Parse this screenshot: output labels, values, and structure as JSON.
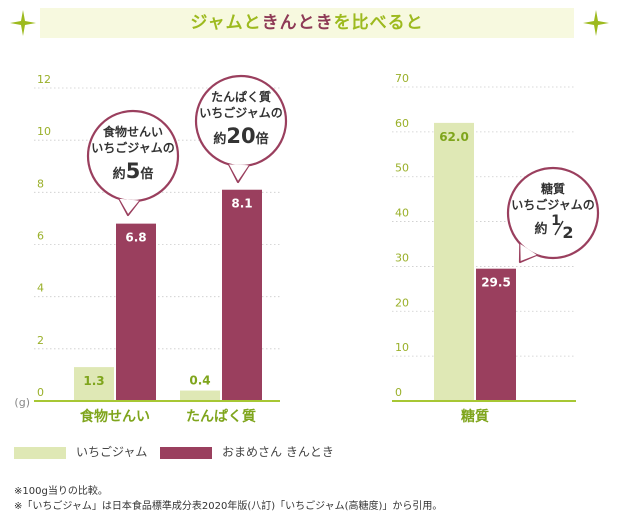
{
  "title": {
    "part1": "ジャムと",
    "part2": "きんとき",
    "part3": "を比べると"
  },
  "colors": {
    "strawberry": "#dfe8b5",
    "kintoki": "#9a3f5e",
    "title_green": "#9dba1e",
    "title_red": "#8e3a56",
    "axis": "#a7c734",
    "tick": "#9ab02a",
    "value_green": "#7fa51c"
  },
  "chart_data": [
    {
      "type": "bar",
      "categories": [
        "食物せんい",
        "たんぱく質"
      ],
      "series": [
        {
          "name": "いちごジャム",
          "values": [
            1.3,
            0.4
          ]
        },
        {
          "name": "おまめさん きんとき",
          "values": [
            6.8,
            8.1
          ]
        }
      ],
      "ylim": [
        0,
        12
      ],
      "yticks": [
        0,
        2,
        4,
        6,
        8,
        10,
        12
      ],
      "yunit": "(g)",
      "value_labels": [
        "1.3",
        "6.8",
        "0.4",
        "8.1"
      ],
      "callouts": [
        {
          "lines": [
            "食物せんい",
            "いちごジャムの"
          ],
          "prefix": "約",
          "big": "5",
          "suffix": "倍"
        },
        {
          "lines": [
            "たんぱく質",
            "いちごジャムの"
          ],
          "prefix": "約",
          "big": "20",
          "suffix": "倍"
        }
      ]
    },
    {
      "type": "bar",
      "categories": [
        "糖質"
      ],
      "series": [
        {
          "name": "いちごジャム",
          "values": [
            62.0
          ]
        },
        {
          "name": "おまめさん きんとき",
          "values": [
            29.5
          ]
        }
      ],
      "ylim": [
        0,
        70
      ],
      "yticks": [
        0,
        10,
        20,
        30,
        40,
        50,
        60,
        70
      ],
      "value_labels": [
        "62.0",
        "29.5"
      ],
      "callouts": [
        {
          "lines": [
            "糖質",
            "いちごジャムの"
          ],
          "prefix": "約",
          "num": "1",
          "den": "2"
        }
      ]
    }
  ],
  "legend": [
    {
      "label": "いちごジャム"
    },
    {
      "label": "おまめさん きんとき"
    }
  ],
  "notes": [
    "※100g当りの比較。",
    "※「いちごジャム」は日本食品標準成分表2020年版(八訂)「いちごジャム(高糖度)」から引用。"
  ]
}
